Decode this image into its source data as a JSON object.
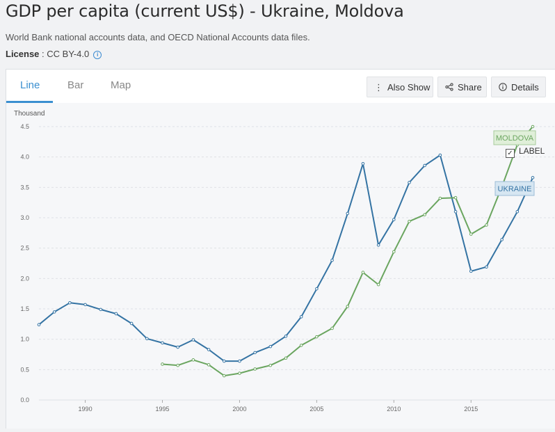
{
  "page": {
    "title": "GDP per capita (current US$) - Ukraine, Moldova",
    "source": "World Bank national accounts data, and OECD National Accounts data files.",
    "license_label": "License",
    "license_value": " : CC BY-4.0"
  },
  "tabs": [
    {
      "label": "Line",
      "active": true
    },
    {
      "label": "Bar",
      "active": false
    },
    {
      "label": "Map",
      "active": false
    }
  ],
  "toolbar": {
    "also_show": "Also Show",
    "share": "Share",
    "details": "Details"
  },
  "label_toggle": {
    "text": "LABEL",
    "checked": true
  },
  "chart_data": {
    "type": "line",
    "ylabel": "Thousand",
    "ylim": [
      0,
      4.5
    ],
    "y_ticks": [
      "0.0",
      "0.5",
      "1.0",
      "1.5",
      "2.0",
      "2.5",
      "3.0",
      "3.5",
      "4.0",
      "4.5"
    ],
    "xlim": [
      1987,
      2019
    ],
    "x_ticks": [
      "1990",
      "1995",
      "2000",
      "2005",
      "2010",
      "2015"
    ],
    "grid": true,
    "series": [
      {
        "name": "UKRAINE",
        "color": "#3473a3",
        "label_fill": "#d6e6f2",
        "label_stroke": "#9cbcd6",
        "x": [
          1987,
          1988,
          1989,
          1990,
          1991,
          1992,
          1993,
          1994,
          1995,
          1996,
          1997,
          1998,
          1999,
          2000,
          2001,
          2002,
          2003,
          2004,
          2005,
          2006,
          2007,
          2008,
          2009,
          2010,
          2011,
          2012,
          2013,
          2014,
          2015,
          2016,
          2017,
          2018,
          2019
        ],
        "values": [
          1.24,
          1.45,
          1.6,
          1.57,
          1.49,
          1.42,
          1.26,
          1.01,
          0.94,
          0.87,
          0.99,
          0.83,
          0.64,
          0.64,
          0.78,
          0.88,
          1.05,
          1.37,
          1.83,
          2.3,
          3.07,
          3.89,
          2.55,
          2.97,
          3.58,
          3.86,
          4.03,
          3.1,
          2.12,
          2.19,
          2.64,
          3.1,
          3.66
        ]
      },
      {
        "name": "MOLDOVA",
        "color": "#6aa55f",
        "label_fill": "#e0efd9",
        "label_stroke": "#a7cb9c",
        "x": [
          1995,
          1996,
          1997,
          1998,
          1999,
          2000,
          2001,
          2002,
          2003,
          2004,
          2005,
          2006,
          2007,
          2008,
          2009,
          2010,
          2011,
          2012,
          2013,
          2014,
          2015,
          2016,
          2017,
          2018,
          2019
        ],
        "values": [
          0.59,
          0.57,
          0.66,
          0.58,
          0.4,
          0.44,
          0.51,
          0.57,
          0.69,
          0.9,
          1.04,
          1.18,
          1.54,
          2.1,
          1.9,
          2.44,
          2.94,
          3.05,
          3.32,
          3.33,
          2.73,
          2.88,
          3.51,
          4.2,
          4.5
        ]
      }
    ]
  }
}
